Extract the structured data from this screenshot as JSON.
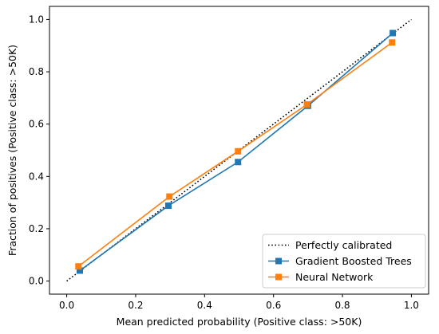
{
  "chart_data": {
    "type": "line",
    "xlabel": "Mean predicted probability (Positive class: >50K)",
    "ylabel": "Fraction of positives (Positive class: >50K)",
    "xlim": [
      -0.05,
      1.05
    ],
    "ylim": [
      -0.05,
      1.05
    ],
    "x_ticks": [
      "0.0",
      "0.2",
      "0.4",
      "0.6",
      "0.8",
      "1.0"
    ],
    "y_ticks": [
      "0.0",
      "0.2",
      "0.4",
      "0.6",
      "0.8",
      "1.0"
    ],
    "grid": false,
    "legend_position": "bottom-right",
    "reference_line": {
      "name": "Perfectly calibrated",
      "x": [
        0,
        1
      ],
      "y": [
        0,
        1
      ],
      "color": "#000000",
      "style": "dotted"
    },
    "series": [
      {
        "name": "Gradient Boosted Trees",
        "color": "#1f77b4",
        "marker": "square",
        "x": [
          0.038,
          0.295,
          0.497,
          0.7,
          0.946
        ],
        "y": [
          0.04,
          0.288,
          0.455,
          0.67,
          0.948
        ]
      },
      {
        "name": "Neural Network",
        "color": "#ff7f0e",
        "marker": "square",
        "x": [
          0.034,
          0.298,
          0.497,
          0.697,
          0.944
        ],
        "y": [
          0.056,
          0.323,
          0.496,
          0.675,
          0.912
        ]
      }
    ]
  }
}
